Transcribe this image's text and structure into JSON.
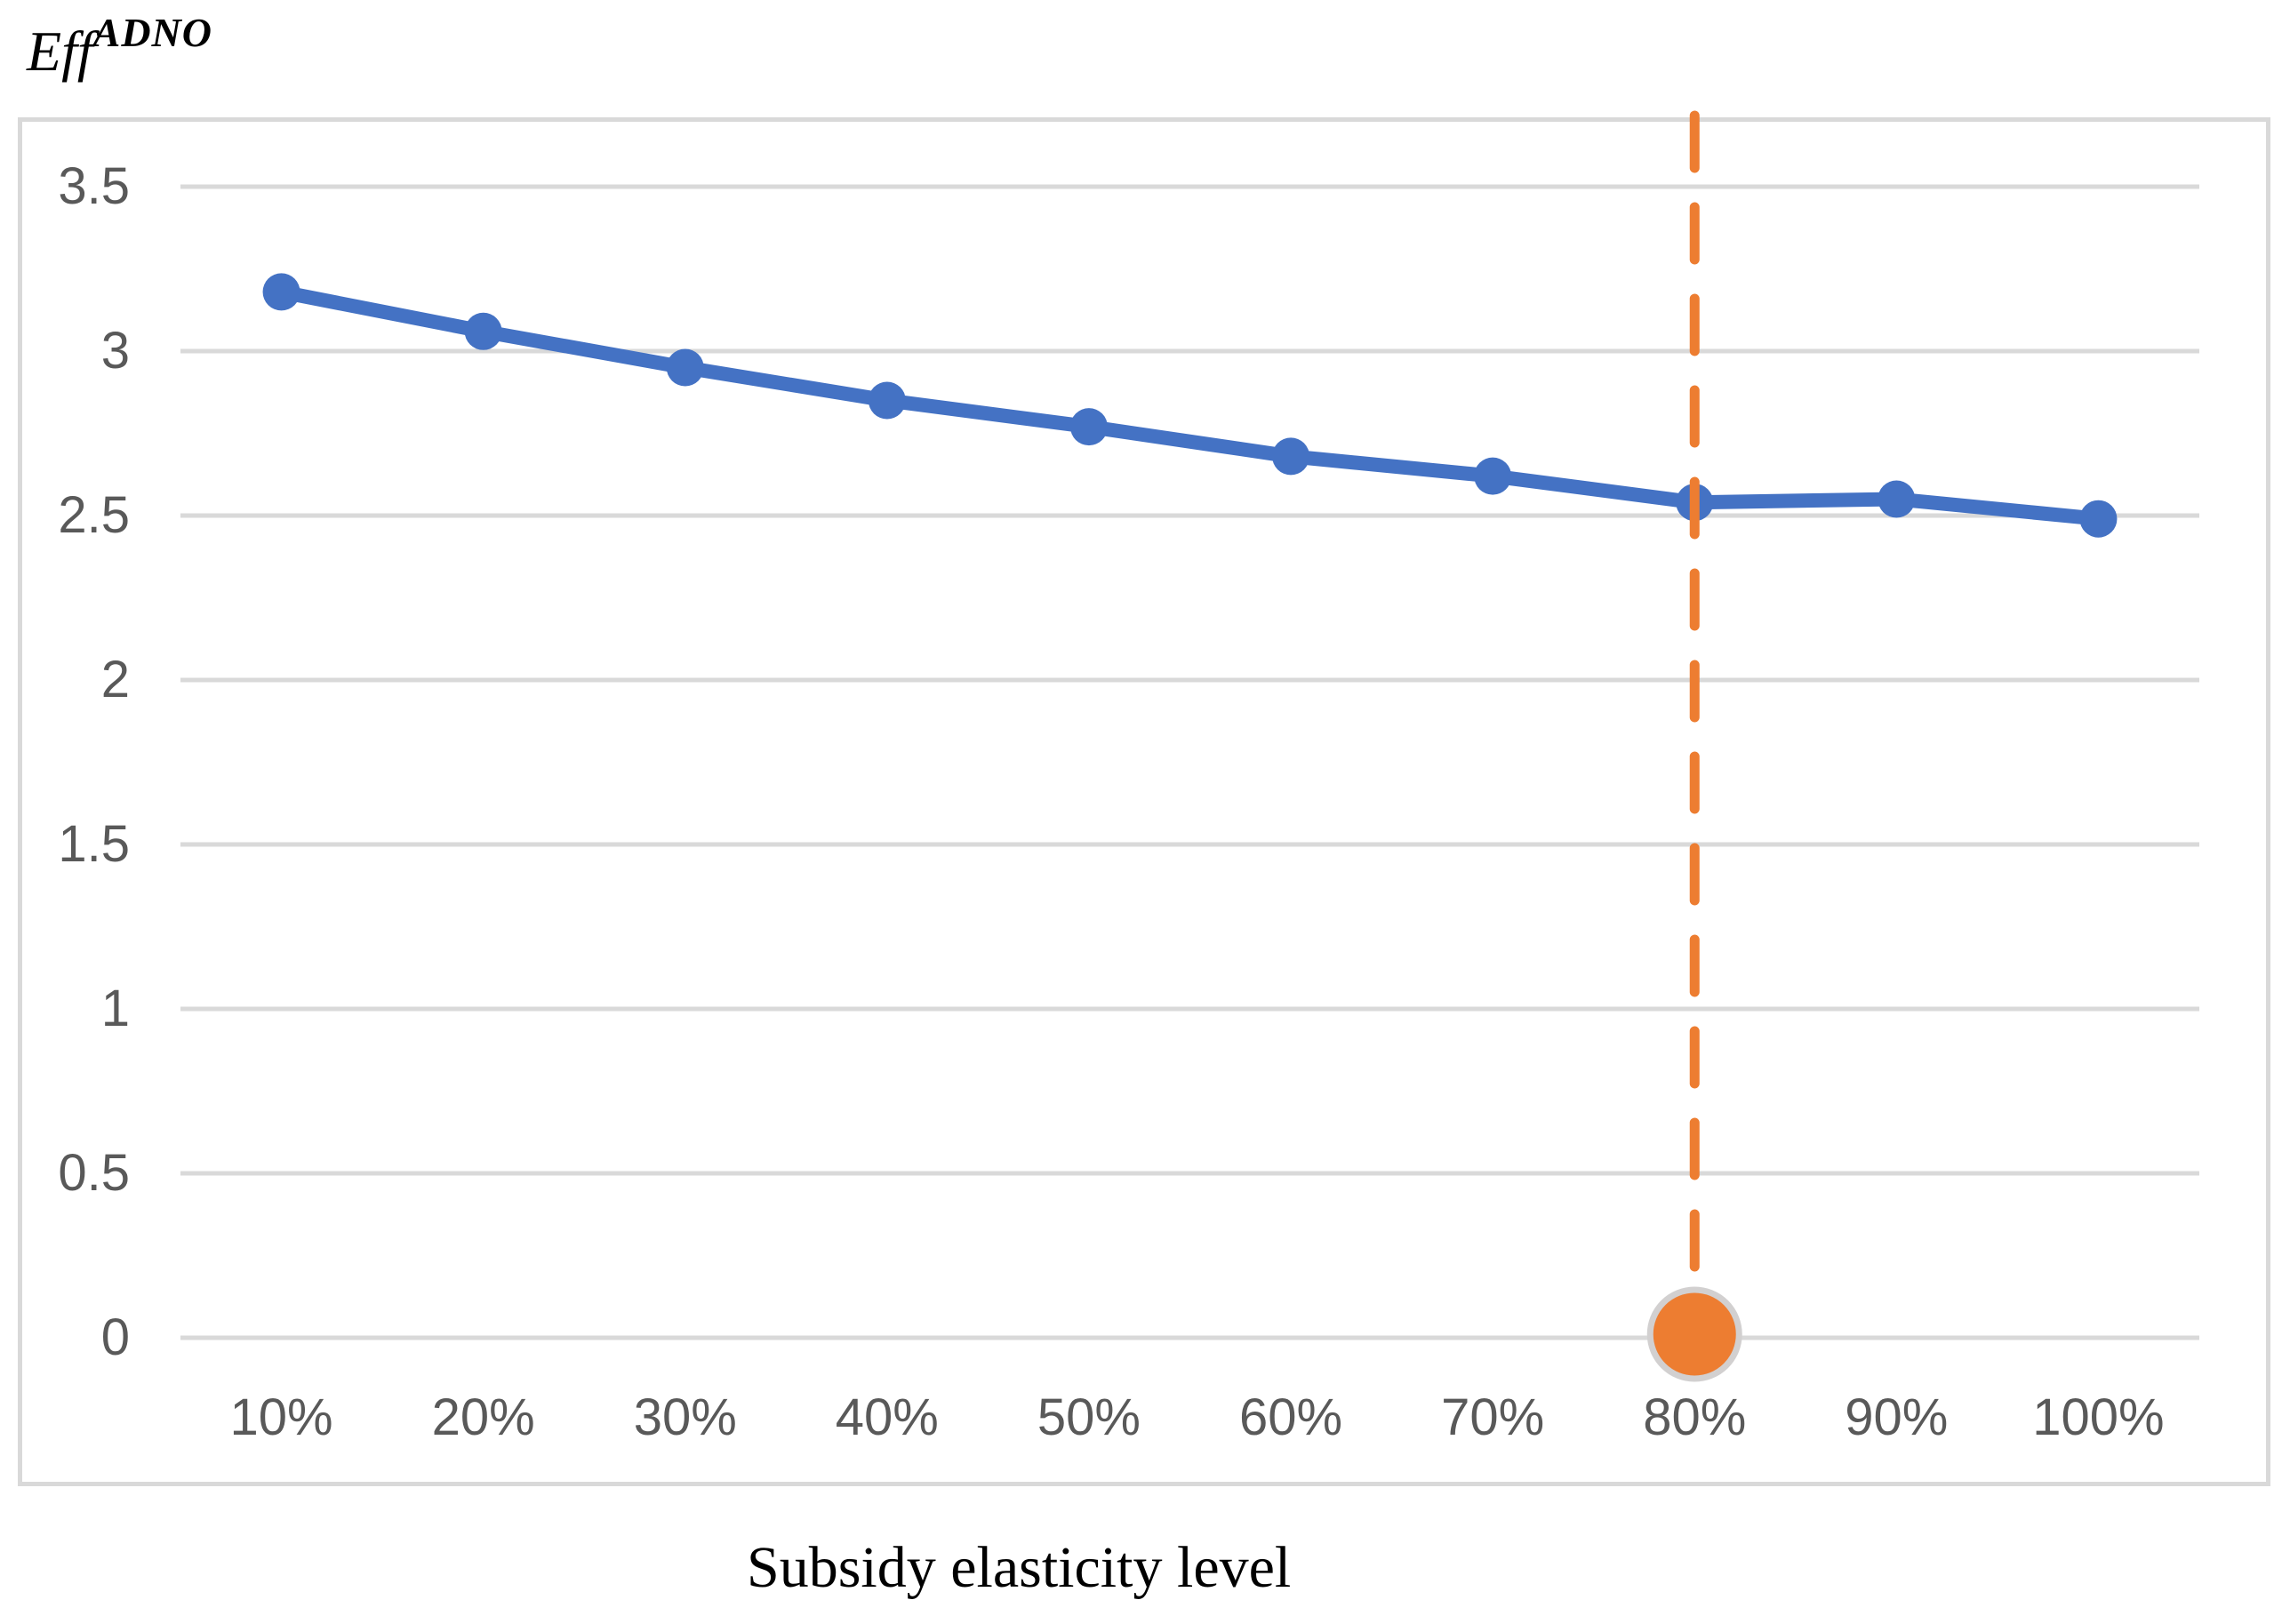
{
  "y_axis_title": {
    "base": "Eff",
    "superscript": "ADNO"
  },
  "x_axis_title": "Subsidy elasticity level",
  "colors": {
    "series_blue": "#4472C4",
    "highlight_orange": "#ED7D31",
    "gridline": "#D9D9D9",
    "frame_border": "#D9D9D9",
    "tick_label": "#595959",
    "axis_title": "#000000",
    "highlight_marker_ring": "#D2D0D0"
  },
  "chart_data": {
    "type": "line",
    "title": "Eff^ADNO",
    "xlabel": "Subsidy elasticity level",
    "ylabel": "",
    "categories": [
      "10%",
      "20%",
      "30%",
      "40%",
      "50%",
      "60%",
      "70%",
      "80%",
      "90%",
      "100%"
    ],
    "series": [
      {
        "name": "EffADNO",
        "color": "#4472C4",
        "values": [
          3.18,
          3.06,
          2.95,
          2.85,
          2.77,
          2.68,
          2.62,
          2.54,
          2.55,
          2.49
        ]
      }
    ],
    "y_ticks": [
      "0",
      "0.5",
      "1",
      "1.5",
      "2",
      "2.5",
      "3",
      "3.5"
    ],
    "ylim": [
      0,
      3.7
    ],
    "grid": "horizontal",
    "legend": "none",
    "highlight": {
      "category": "80%",
      "index": 7,
      "line_style": "dashed",
      "line_color": "#ED7D31",
      "marker_value": 0,
      "marker_fill": "#ED7D31",
      "marker_ring": "#D2D0D0"
    }
  }
}
